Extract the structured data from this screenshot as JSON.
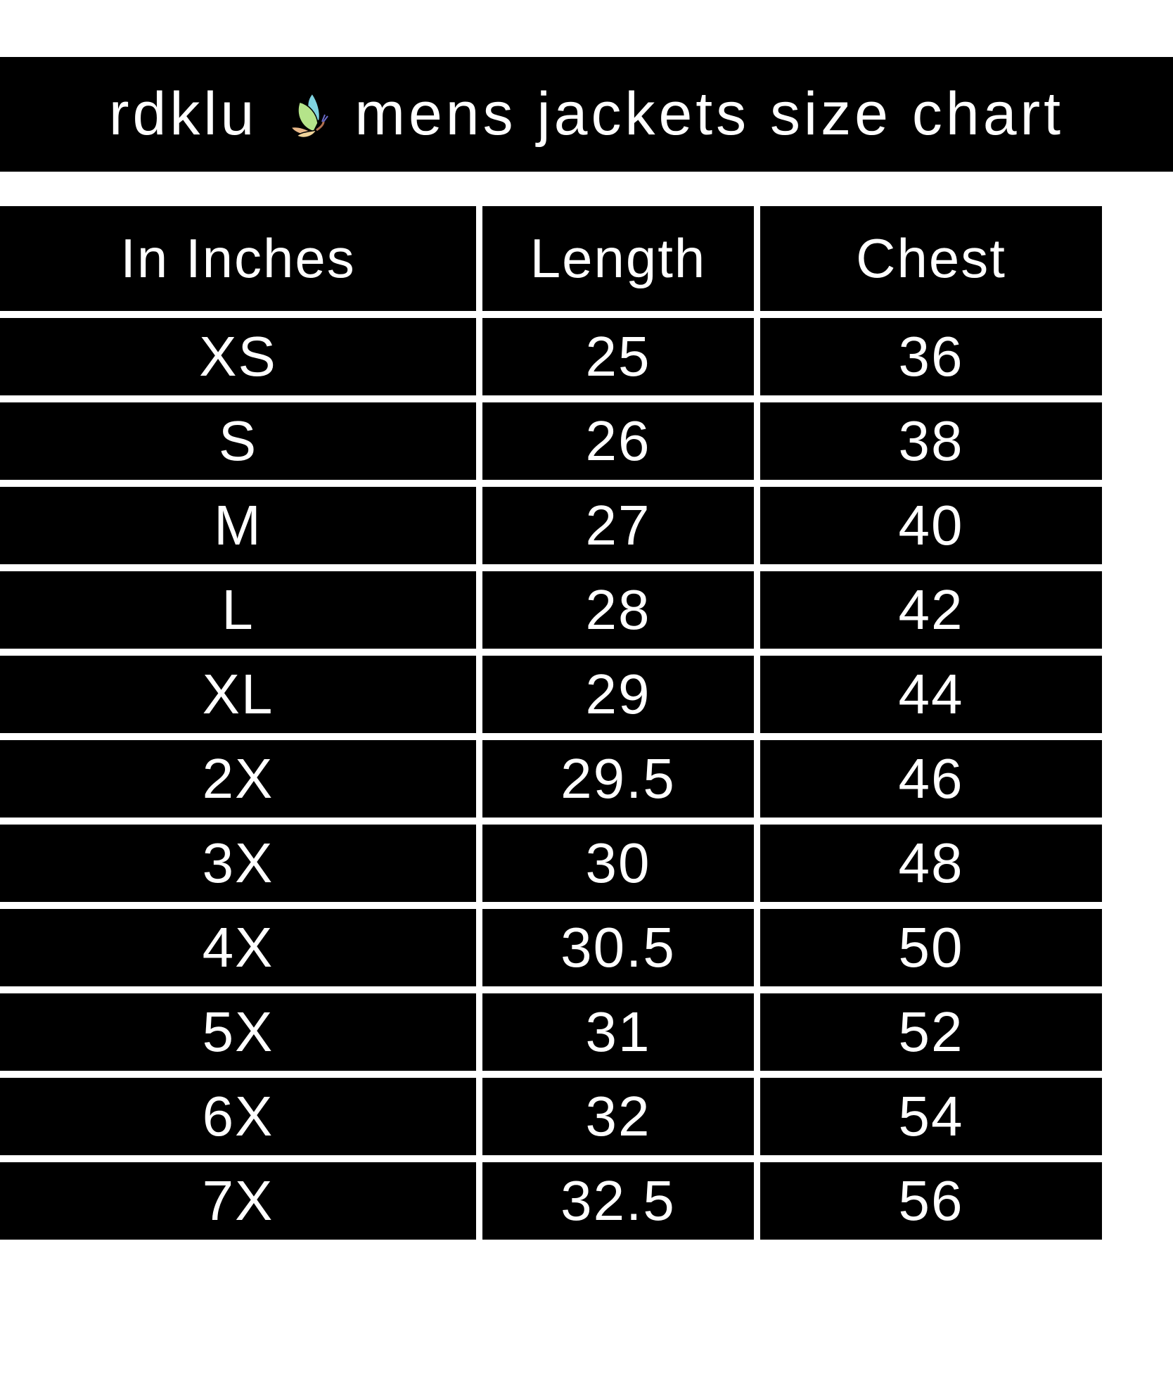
{
  "title": {
    "brand": "rdklu",
    "logo_icon": "butterfly-icon",
    "text": "mens jackets size chart"
  },
  "table": {
    "headers": [
      "In Inches",
      "Length",
      "Chest"
    ],
    "rows": [
      [
        "XS",
        "25",
        "36"
      ],
      [
        "S",
        "26",
        "38"
      ],
      [
        "M",
        "27",
        "40"
      ],
      [
        "L",
        "28",
        "42"
      ],
      [
        "XL",
        "29",
        "44"
      ],
      [
        "2X",
        "29.5",
        "46"
      ],
      [
        "3X",
        "30",
        "48"
      ],
      [
        "4X",
        "30.5",
        "50"
      ],
      [
        "5X",
        "31",
        "52"
      ],
      [
        "6X",
        "32",
        "54"
      ],
      [
        "7X",
        "32.5",
        "56"
      ]
    ]
  },
  "colors": {
    "background": "#000000",
    "text": "#ffffff",
    "gridlines": "#ffffff"
  }
}
